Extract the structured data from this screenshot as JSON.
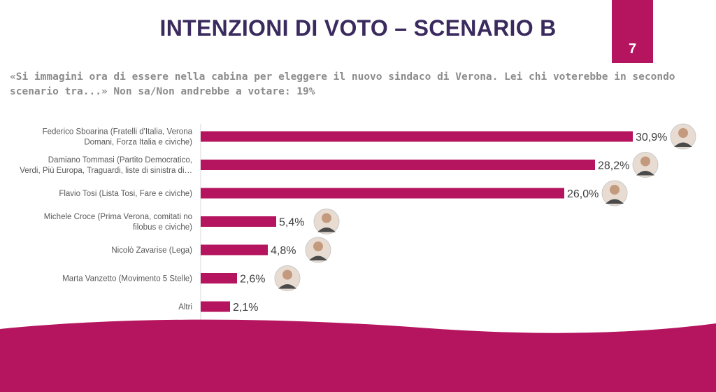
{
  "header": {
    "title": "INTENZIONI DI VOTO – SCENARIO B",
    "page_number": "7"
  },
  "question": "«Si immagini ora di essere nella cabina per eleggere il nuovo sindaco di Verona. Lei chi voterebbe in secondo scenario tra...» Non sa/Non andrebbe a votare: 19%",
  "colors": {
    "accent": "#b5145e",
    "title": "#3a2a5e"
  },
  "chart_data": {
    "type": "bar",
    "orientation": "horizontal",
    "categories": [
      [
        "Federico Sboarina (Fratelli d'Italia, Verona",
        "Domani, Forza Italia e civiche)"
      ],
      [
        "Damiano Tommasi (Partito Democratico,",
        "Verdi, Più Europa, Traguardi, liste di sinistra di…"
      ],
      [
        "Flavio Tosi (Lista Tosi, Fare e  civiche)"
      ],
      [
        "Michele Croce (Prima Verona, comitati no",
        "filobus e civiche)"
      ],
      [
        "Nicolò Zavarise (Lega)"
      ],
      [
        "Marta Vanzetto (Movimento 5 Stelle)"
      ],
      [
        "Altri"
      ]
    ],
    "values": [
      30.9,
      28.2,
      26.0,
      5.4,
      4.8,
      2.6,
      2.1
    ],
    "value_labels": [
      "30,9%",
      "28,2%",
      "26,0%",
      "5,4%",
      "4,8%",
      "2,6%",
      "2,1%"
    ],
    "photos": [
      "avatar",
      "avatar",
      "avatar",
      "avatar",
      "avatar",
      "avatar",
      null
    ],
    "bar_color": "#b5145e",
    "xlim": [
      0,
      32
    ],
    "grid": false,
    "legend": "none"
  }
}
